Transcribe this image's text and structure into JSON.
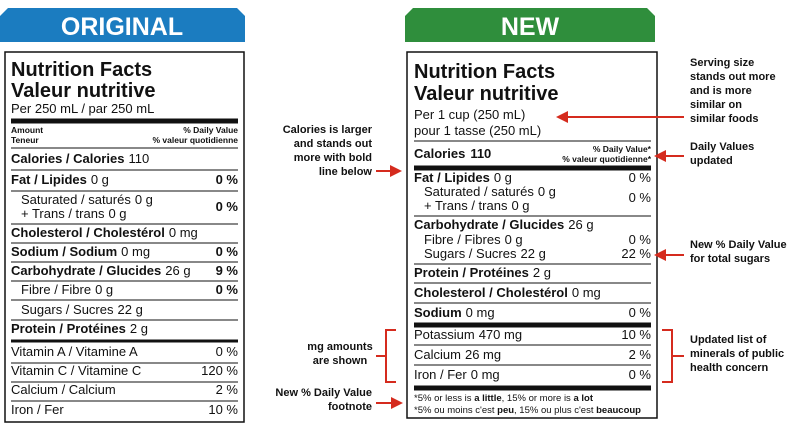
{
  "banners": {
    "original": "ORIGINAL",
    "new": "NEW"
  },
  "original": {
    "title": "Nutrition Facts",
    "title_fr": "Valeur nutritive",
    "serving": "Per 250 mL  / par 250 mL",
    "header_left": [
      "Amount",
      "Teneur"
    ],
    "header_right": [
      "% Daily Value",
      "% valeur quotidienne"
    ],
    "calories": {
      "name": "Calories / Calories",
      "amount": "110"
    },
    "rows": [
      {
        "name": "Fat / Lipides",
        "amount": "0 g",
        "dv": "0 %"
      },
      {
        "name": "Saturated / saturés",
        "amount": "0 g",
        "name2": "+ Trans / trans",
        "amount2": "0 g",
        "dv": "0 %"
      },
      {
        "name": "Cholesterol / Cholestérol",
        "amount": "0 mg"
      },
      {
        "name": "Sodium / Sodium",
        "amount": "0 mg",
        "dv": "0 %"
      },
      {
        "name": "Carbohydrate / Glucides",
        "amount": "26 g",
        "dv": "9 %"
      },
      {
        "name": "Fibre / Fibre",
        "amount": "0 g",
        "dv": "0 %"
      },
      {
        "name": "Sugars / Sucres",
        "amount": "22 g"
      },
      {
        "name": "Protein / Protéines",
        "amount": "2 g"
      },
      {
        "name": "Vitamin A / Vitamine A",
        "dv": "0 %"
      },
      {
        "name": "Vitamin C / Vitamine C",
        "dv": "120 %"
      },
      {
        "name": "Calcium / Calcium",
        "dv": "2 %"
      },
      {
        "name": "Iron / Fer",
        "dv": "10 %"
      }
    ]
  },
  "new": {
    "title": "Nutrition Facts",
    "title_fr": "Valeur nutritive",
    "serving": [
      "Per 1 cup (250 mL)",
      "pour 1 tasse (250 mL)"
    ],
    "calories": {
      "name": "Calories",
      "amount": "110"
    },
    "header_right": [
      "% Daily Value*",
      "% valeur quotidienne*"
    ],
    "rows": [
      {
        "name": "Fat / Lipides",
        "amount": "0 g",
        "dv": "0 %"
      },
      {
        "name": "Saturated / saturés",
        "amount": "0 g",
        "name2": "+ Trans / trans",
        "amount2": "0 g",
        "dv": "0 %"
      },
      {
        "name": "Carbohydrate / Glucides",
        "amount": "26 g"
      },
      {
        "name": "Fibre / Fibres",
        "amount": "0 g",
        "dv": "0 %"
      },
      {
        "name": "Sugars / Sucres",
        "amount": "22 g",
        "dv": "22 %"
      },
      {
        "name": "Protein / Protéines",
        "amount": "2 g"
      },
      {
        "name": "Cholesterol / Cholestérol",
        "amount": "0 mg"
      },
      {
        "name": "Sodium",
        "amount": "0 mg",
        "dv": "0 %"
      },
      {
        "name": "Potassium",
        "amount": "470 mg",
        "dv": "10 %"
      },
      {
        "name": "Calcium",
        "amount": "26 mg",
        "dv": "2 %"
      },
      {
        "name": "Iron / Fer",
        "amount": "0 mg",
        "dv": "0 %"
      }
    ],
    "footnote": [
      [
        "*5% or less is ",
        "a little",
        ", 15% or more is ",
        "a lot"
      ],
      [
        "*5% ou moins c'est ",
        "peu",
        ", 15% ou plus c'est ",
        "beaucoup"
      ]
    ]
  },
  "annotations": {
    "serving": [
      "Serving size",
      "stands out more",
      "and is more",
      "similar on",
      "similar foods"
    ],
    "daily_values": [
      "Daily Values",
      "updated"
    ],
    "sugars": [
      "New % Daily Value",
      "for total sugars"
    ],
    "minerals": [
      "Updated list of",
      "minerals of public",
      "health concern"
    ],
    "calories": [
      "Calories is larger",
      "and stands out",
      "more with bold",
      "line below"
    ],
    "mg": [
      "mg amounts",
      "are shown"
    ],
    "footnote": [
      "New % Daily Value",
      "footnote"
    ]
  }
}
